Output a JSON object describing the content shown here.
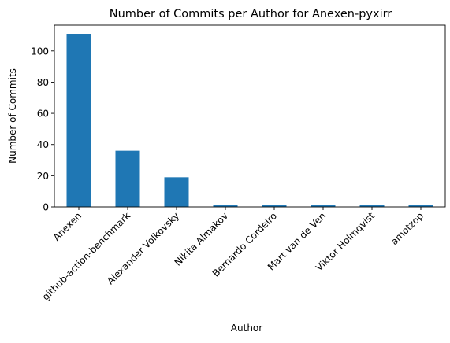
{
  "chart_data": {
    "type": "bar",
    "title": "Number of Commits per Author for Anexen-pyxirr",
    "xlabel": "Author",
    "ylabel": "Number of Commits",
    "categories": [
      "Anexen",
      "github-action-benchmark",
      "Alexander Volkovsky",
      "Nikita Almakov",
      "Bernardo Cordeiro",
      "Mart van de Ven",
      "Viktor Holmqvist",
      "amotzop"
    ],
    "values": [
      111,
      36,
      19,
      1,
      1,
      1,
      1,
      1
    ],
    "ylim": [
      0,
      116.55
    ],
    "yticks": [
      0,
      20,
      40,
      60,
      80,
      100
    ],
    "grid": false,
    "legend": "none",
    "bar_color": "#1f77b4"
  }
}
